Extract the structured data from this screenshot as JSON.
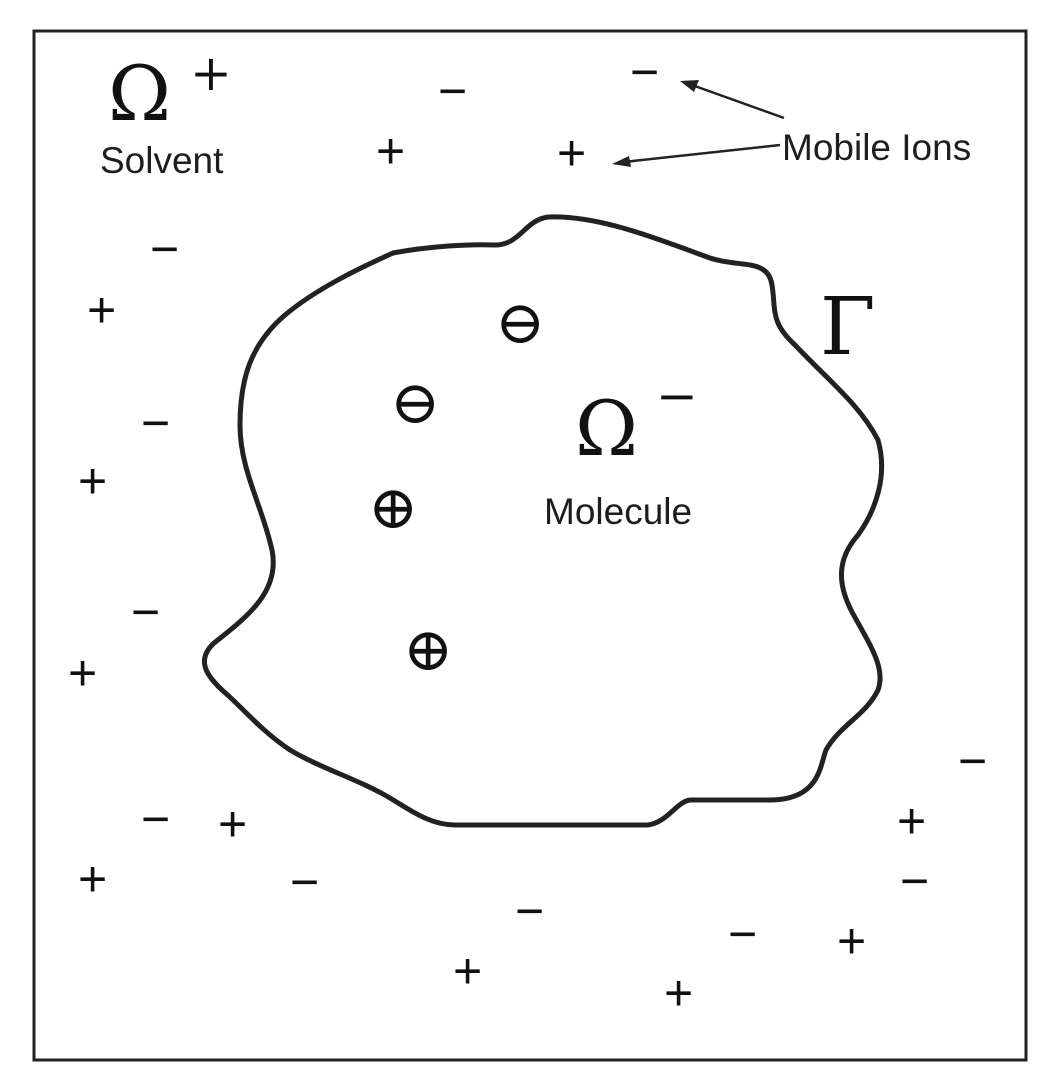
{
  "labels": {
    "solvent_symbol": "Ω",
    "solvent_superscript": "+",
    "solvent_name": "Solvent",
    "molecule_symbol": "Ω",
    "molecule_superscript": "−",
    "molecule_name": "Molecule",
    "boundary_symbol": "Γ",
    "mobile_ions": "Mobile Ions"
  },
  "ions": {
    "plus": "+",
    "minus": "−"
  },
  "fixed_charges": {
    "negative": "⊖",
    "positive": "⊕"
  },
  "colors": {
    "stroke": "#222222",
    "background": "#ffffff"
  }
}
